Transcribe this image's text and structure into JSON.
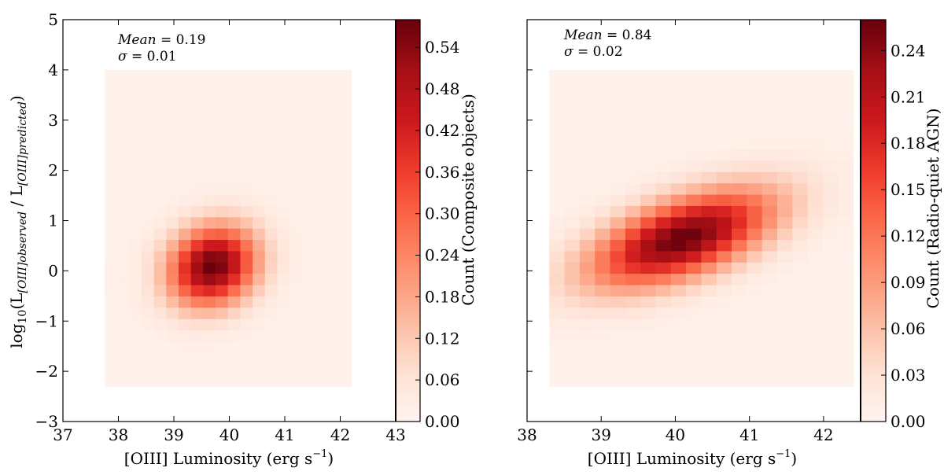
{
  "chart_data": [
    {
      "type": "heatmap",
      "xlabel": "[OIII] Luminosity (erg s⁻¹)",
      "xlabel_main": "[OIII] Luminosity (erg s",
      "xlabel_sup": "−1",
      "xlabel_close": ")",
      "ylabel": "log10(L[OIII]observed / L[OIII]predicted)",
      "ylabel_parts": {
        "log": "log",
        "log_sub": "10",
        "open": "(L",
        "sub1": "[OIII]observed",
        "mid": " / L",
        "sub2": "[OIII]predicted",
        "close": ")"
      },
      "xlim": [
        37,
        43
      ],
      "ylim": [
        -3,
        5
      ],
      "xticks": [
        "37",
        "38",
        "39",
        "40",
        "41",
        "42",
        "43"
      ],
      "yticks": [
        "−3",
        "−2",
        "−1",
        "0",
        "1",
        "2",
        "3",
        "4",
        "5"
      ],
      "extent": {
        "x": [
          37.75,
          42.2
        ],
        "y": [
          -2.3,
          4.0
        ]
      },
      "peak": {
        "x": 39.7,
        "y": 0.1,
        "sigma_x": 0.55,
        "sigma_y": 0.55,
        "tilt": 0.15
      },
      "value_max": 0.58,
      "annotation": {
        "mean_label": "Mean",
        "mean_value": " = 0.19",
        "sigma_label": "σ",
        "sigma_value": " = 0.01"
      },
      "colorbar": {
        "label": "Count (Composite objects)",
        "range": [
          0,
          0.58
        ],
        "ticks": [
          "0.00",
          "0.06",
          "0.12",
          "0.18",
          "0.24",
          "0.30",
          "0.36",
          "0.42",
          "0.48",
          "0.54"
        ]
      }
    },
    {
      "type": "heatmap",
      "xlabel": "[OIII] Luminosity (erg s⁻¹)",
      "xlabel_main": "[OIII] Luminosity (erg s",
      "xlabel_sup": "−1",
      "xlabel_close": ")",
      "xlim": [
        38,
        42.5
      ],
      "ylim": [
        -3,
        5
      ],
      "xticks": [
        "38",
        "39",
        "40",
        "41",
        "42"
      ],
      "extent": {
        "x": [
          38.3,
          42.4
        ],
        "y": [
          -2.3,
          4.0
        ]
      },
      "peak": {
        "x": 40.1,
        "y": 0.65,
        "sigma_x": 0.85,
        "sigma_y": 0.55,
        "tilt": 0.45
      },
      "value_max": 0.26,
      "annotation": {
        "mean_label": "Mean",
        "mean_value": " = 0.84",
        "sigma_label": "σ",
        "sigma_value": " = 0.02"
      },
      "colorbar": {
        "label": "Count (Radio-quiet AGN)",
        "range": [
          0,
          0.26
        ],
        "ticks": [
          "0.00",
          "0.03",
          "0.06",
          "0.09",
          "0.12",
          "0.15",
          "0.18",
          "0.21",
          "0.24"
        ]
      }
    }
  ],
  "colors": {
    "cmap": [
      "#fff5f0",
      "#fee0d2",
      "#fcbba1",
      "#fc9272",
      "#fb6a4a",
      "#ef3b2c",
      "#cb181d",
      "#a50f15",
      "#67000d"
    ]
  }
}
